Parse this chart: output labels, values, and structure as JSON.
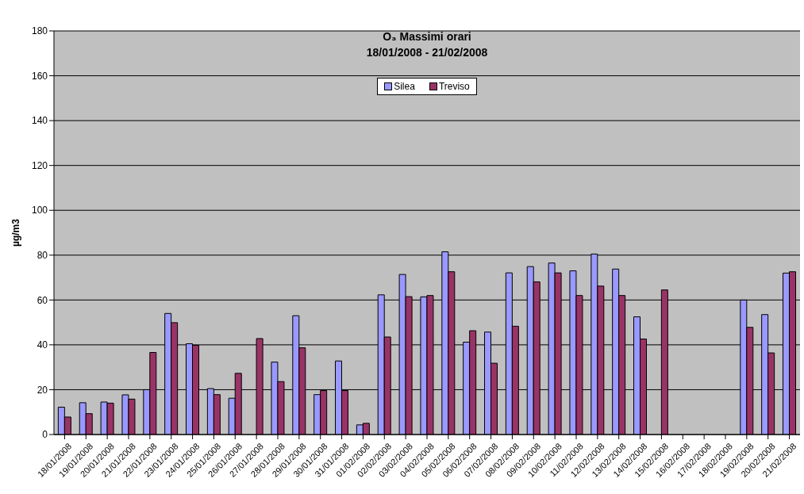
{
  "chart_data": {
    "type": "bar",
    "title": "O₃ Massimi orari",
    "subtitle": "18/01/2008 - 21/02/2008",
    "ylabel": "µg/m3",
    "categories": [
      "18/01/2008",
      "19/01/2008",
      "20/01/2008",
      "21/01/2008",
      "22/01/2008",
      "23/01/2008",
      "24/01/2008",
      "25/01/2008",
      "26/01/2008",
      "27/01/2008",
      "28/01/2008",
      "29/01/2008",
      "30/01/2008",
      "31/01/2008",
      "01/02/2008",
      "02/02/2008",
      "03/02/2008",
      "04/02/2008",
      "05/02/2008",
      "06/02/2008",
      "07/02/2008",
      "08/02/2008",
      "09/02/2008",
      "10/02/2008",
      "11/02/2008",
      "12/02/2008",
      "13/02/2008",
      "14/02/2008",
      "15/02/2008",
      "16/02/2008",
      "17/02/2008",
      "18/02/2008",
      "19/02/2008",
      "20/02/2008",
      "21/02/2008"
    ],
    "series": [
      {
        "name": "Silea",
        "color": "#9999ff",
        "values": [
          12.2,
          14.2,
          14.5,
          17.7,
          20,
          54,
          40.5,
          20.5,
          16.2,
          null,
          32.3,
          53,
          17.8,
          32.8,
          4.3,
          62.3,
          71.4,
          61.4,
          81.5,
          41.2,
          45.7,
          72.1,
          74.9,
          76.5,
          73,
          80.5,
          73.8,
          52.5,
          null,
          null,
          null,
          null,
          60,
          53.5,
          72
        ]
      },
      {
        "name": "Treviso",
        "color": "#993366",
        "values": [
          7.8,
          9.3,
          14,
          15.8,
          36.6,
          49.9,
          39.8,
          17.8,
          27.3,
          42.8,
          23.6,
          38.7,
          19.6,
          19.6,
          5,
          43.5,
          61.5,
          62,
          72.6,
          46.3,
          31.8,
          48.3,
          68.1,
          72.1,
          62,
          66.2,
          62,
          42.6,
          64.5,
          null,
          null,
          null,
          47.8,
          36.4,
          72.6
        ]
      }
    ],
    "ylim": [
      0,
      180
    ],
    "yticks": [
      0,
      20,
      40,
      60,
      80,
      100,
      120,
      140,
      160,
      180
    ],
    "grid": "y",
    "legend": "top"
  }
}
